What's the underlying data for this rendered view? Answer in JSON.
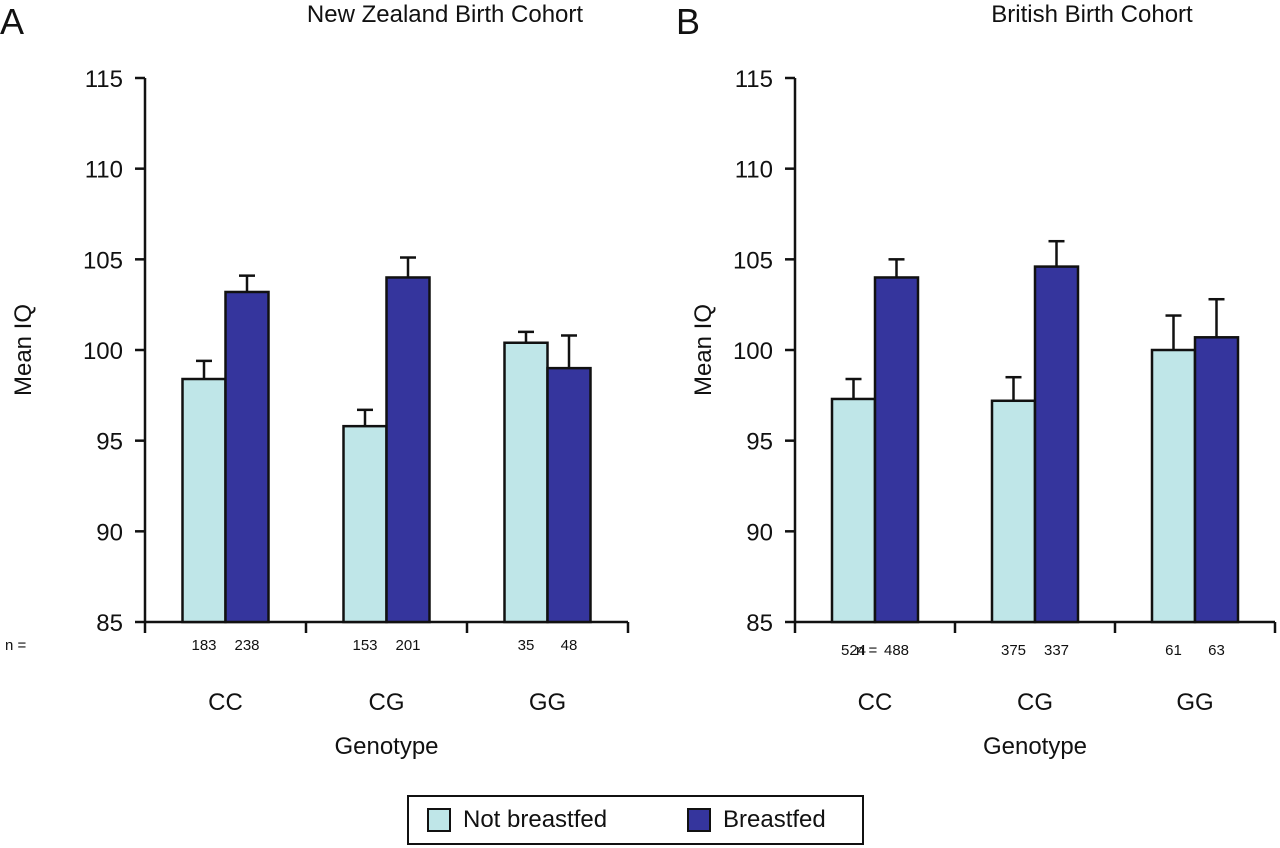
{
  "chart_data": [
    {
      "type": "bar",
      "panel_label": "A",
      "title": "New Zealand Birth Cohort",
      "xlabel": "Genotype",
      "ylabel": "Mean IQ",
      "ylim": [
        85,
        115
      ],
      "yticks": [
        85,
        90,
        95,
        100,
        105,
        110,
        115
      ],
      "categories": [
        "CC",
        "CG",
        "GG"
      ],
      "n_prefix": "n =",
      "series": [
        {
          "name": "Not breastfed",
          "color": "#bfe6e8",
          "values": [
            98.4,
            95.8,
            100.4
          ],
          "error_upper": [
            99.4,
            96.7,
            101.0
          ],
          "n": [
            "183",
            "153",
            "35"
          ]
        },
        {
          "name": "Breastfed",
          "color": "#35359d",
          "values": [
            103.2,
            104.0,
            99.0
          ],
          "error_upper": [
            104.1,
            105.1,
            100.8
          ],
          "n": [
            "238",
            "201",
            "48"
          ]
        }
      ]
    },
    {
      "type": "bar",
      "panel_label": "B",
      "title": "British Birth Cohort",
      "xlabel": "Genotype",
      "ylabel": "Mean IQ",
      "ylim": [
        85,
        115
      ],
      "yticks": [
        85,
        90,
        95,
        100,
        105,
        110,
        115
      ],
      "categories": [
        "CC",
        "CG",
        "GG"
      ],
      "n_prefix": "n =",
      "series": [
        {
          "name": "Not breastfed",
          "color": "#bfe6e8",
          "values": [
            97.3,
            97.2,
            100.0
          ],
          "error_upper": [
            98.4,
            98.5,
            101.9
          ],
          "n": [
            "524",
            "375",
            "61"
          ]
        },
        {
          "name": "Breastfed",
          "color": "#35359d",
          "values": [
            104.0,
            104.6,
            100.7
          ],
          "error_upper": [
            105.0,
            106.0,
            102.8
          ],
          "n": [
            "488",
            "337",
            "63"
          ]
        }
      ]
    }
  ],
  "legend": {
    "items": [
      {
        "label": "Not breastfed",
        "color": "#bfe6e8"
      },
      {
        "label": "Breastfed",
        "color": "#35359d"
      }
    ]
  }
}
